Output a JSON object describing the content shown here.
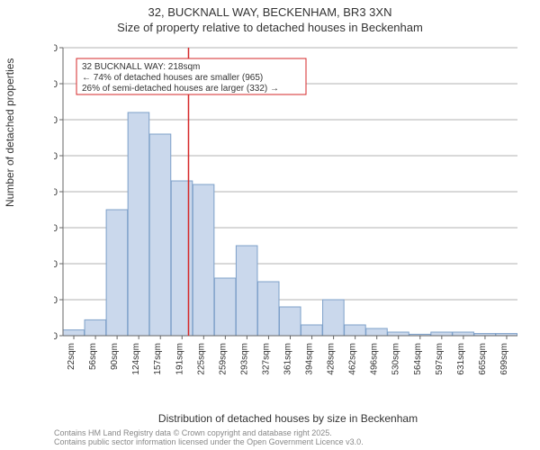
{
  "header": {
    "line1": "32, BUCKNALL WAY, BECKENHAM, BR3 3XN",
    "line2": "Size of property relative to detached houses in Beckenham"
  },
  "chart": {
    "type": "histogram",
    "ylabel": "Number of detached properties",
    "xlabel": "Distribution of detached houses by size in Beckenham",
    "ylim": [
      0,
      400
    ],
    "ytick_step": 50,
    "x_tick_labels": [
      "22sqm",
      "56sqm",
      "90sqm",
      "124sqm",
      "157sqm",
      "191sqm",
      "225sqm",
      "259sqm",
      "293sqm",
      "327sqm",
      "361sqm",
      "394sqm",
      "428sqm",
      "462sqm",
      "496sqm",
      "530sqm",
      "564sqm",
      "597sqm",
      "631sqm",
      "665sqm",
      "699sqm"
    ],
    "values": [
      8,
      22,
      175,
      310,
      280,
      215,
      210,
      80,
      125,
      75,
      40,
      15,
      50,
      15,
      10,
      5,
      2,
      5,
      5,
      3,
      3
    ],
    "bar_fill": "#cad8ec",
    "bar_stroke": "#7da0c9",
    "background_color": "#ffffff",
    "axis_color": "#666666",
    "marker": {
      "position_index": 5.8,
      "color": "#d62728",
      "box_lines": [
        "32 BUCKNALL WAY: 218sqm",
        "← 74% of detached houses are smaller (965)",
        "26% of semi-detached houses are larger (332) →"
      ]
    }
  },
  "footer": {
    "line1": "Contains HM Land Registry data © Crown copyright and database right 2025.",
    "line2": "Contains public sector information licensed under the Open Government Licence v3.0."
  }
}
